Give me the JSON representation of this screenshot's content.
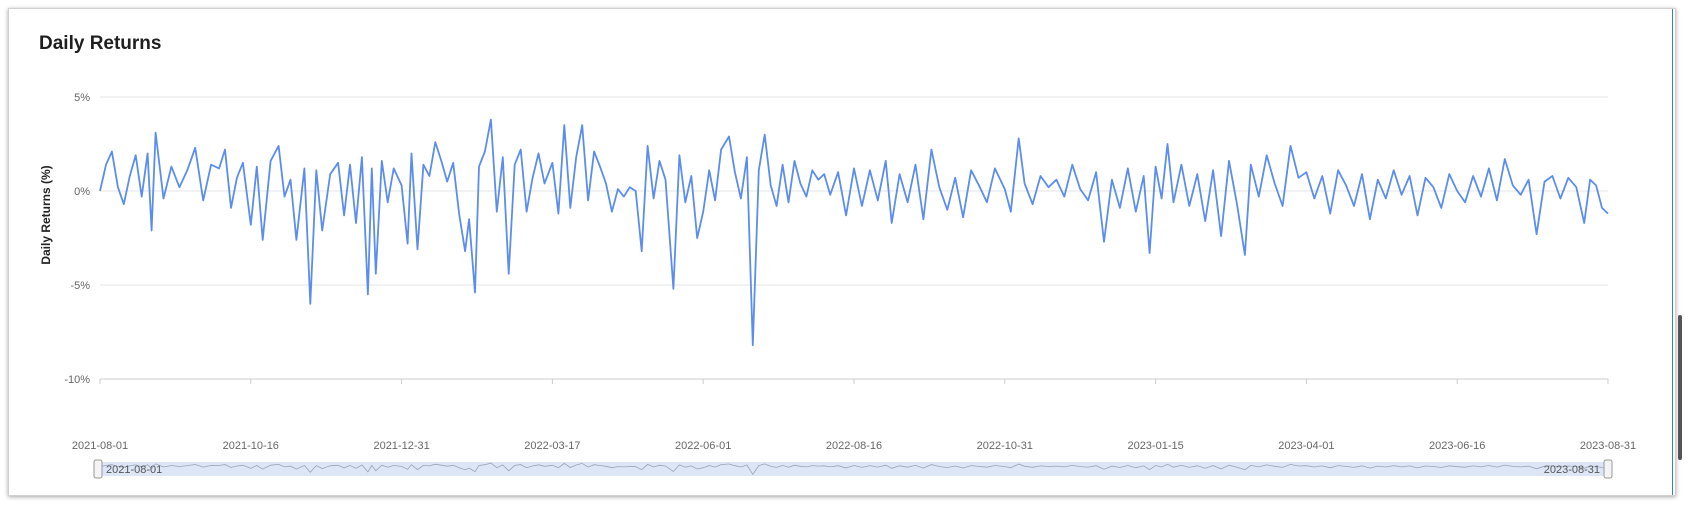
{
  "panel": {
    "title": "Daily Returns"
  },
  "chart_data": {
    "type": "line",
    "title": "Daily Returns",
    "ylabel": "Daily Returns (%)",
    "xlabel": "",
    "ylim": [
      -10,
      5
    ],
    "y_ticks": [
      "5%",
      "0%",
      "-5%",
      "-10%"
    ],
    "y_tick_values": [
      5,
      0,
      -5,
      -10
    ],
    "x_range": [
      "2021-08-01",
      "2023-08-31"
    ],
    "x_tick_labels": [
      "2021-08-01",
      "2021-10-16",
      "2021-12-31",
      "2022-03-17",
      "2022-06-01",
      "2022-08-16",
      "2022-10-31",
      "2023-01-15",
      "2023-04-01",
      "2023-06-16",
      "2023-08-31"
    ],
    "grid": "horizontal",
    "legend": "none",
    "series": [
      {
        "color": "#5b8def",
        "points": [
          [
            "2021-08-01",
            0.0
          ],
          [
            "2021-08-04",
            1.4
          ],
          [
            "2021-08-07",
            2.1
          ],
          [
            "2021-08-10",
            0.2
          ],
          [
            "2021-08-13",
            -0.7
          ],
          [
            "2021-08-16",
            0.8
          ],
          [
            "2021-08-19",
            1.9
          ],
          [
            "2021-08-22",
            -0.3
          ],
          [
            "2021-08-25",
            2.0
          ],
          [
            "2021-08-27",
            -2.1
          ],
          [
            "2021-08-29",
            3.1
          ],
          [
            "2021-09-02",
            -0.4
          ],
          [
            "2021-09-06",
            1.3
          ],
          [
            "2021-09-10",
            0.2
          ],
          [
            "2021-09-14",
            1.1
          ],
          [
            "2021-09-18",
            2.3
          ],
          [
            "2021-09-22",
            -0.5
          ],
          [
            "2021-09-26",
            1.4
          ],
          [
            "2021-09-30",
            1.2
          ],
          [
            "2021-10-03",
            2.2
          ],
          [
            "2021-10-06",
            -0.9
          ],
          [
            "2021-10-09",
            0.7
          ],
          [
            "2021-10-12",
            1.5
          ],
          [
            "2021-10-16",
            -1.8
          ],
          [
            "2021-10-19",
            1.3
          ],
          [
            "2021-10-22",
            -2.6
          ],
          [
            "2021-10-26",
            1.6
          ],
          [
            "2021-10-30",
            2.4
          ],
          [
            "2021-11-02",
            -0.3
          ],
          [
            "2021-11-05",
            0.6
          ],
          [
            "2021-11-08",
            -2.6
          ],
          [
            "2021-11-12",
            1.2
          ],
          [
            "2021-11-15",
            -6.0
          ],
          [
            "2021-11-18",
            1.1
          ],
          [
            "2021-11-21",
            -2.1
          ],
          [
            "2021-11-25",
            0.9
          ],
          [
            "2021-11-29",
            1.5
          ],
          [
            "2021-12-02",
            -1.3
          ],
          [
            "2021-12-05",
            1.4
          ],
          [
            "2021-12-08",
            -1.7
          ],
          [
            "2021-12-11",
            1.8
          ],
          [
            "2021-12-14",
            -5.5
          ],
          [
            "2021-12-16",
            1.2
          ],
          [
            "2021-12-18",
            -4.4
          ],
          [
            "2021-12-21",
            1.6
          ],
          [
            "2021-12-24",
            -0.6
          ],
          [
            "2021-12-27",
            1.2
          ],
          [
            "2021-12-31",
            0.3
          ],
          [
            "2022-01-03",
            -2.8
          ],
          [
            "2022-01-05",
            2.0
          ],
          [
            "2022-01-08",
            -3.1
          ],
          [
            "2022-01-11",
            1.4
          ],
          [
            "2022-01-14",
            0.8
          ],
          [
            "2022-01-17",
            2.6
          ],
          [
            "2022-01-20",
            1.6
          ],
          [
            "2022-01-23",
            0.5
          ],
          [
            "2022-01-26",
            1.5
          ],
          [
            "2022-01-29",
            -1.2
          ],
          [
            "2022-02-01",
            -3.2
          ],
          [
            "2022-02-03",
            -1.5
          ],
          [
            "2022-02-06",
            -5.4
          ],
          [
            "2022-02-08",
            1.3
          ],
          [
            "2022-02-11",
            2.1
          ],
          [
            "2022-02-14",
            3.8
          ],
          [
            "2022-02-17",
            -1.1
          ],
          [
            "2022-02-20",
            1.8
          ],
          [
            "2022-02-23",
            -4.4
          ],
          [
            "2022-02-26",
            1.4
          ],
          [
            "2022-03-01",
            2.2
          ],
          [
            "2022-03-04",
            -1.1
          ],
          [
            "2022-03-07",
            0.7
          ],
          [
            "2022-03-10",
            2.0
          ],
          [
            "2022-03-13",
            0.4
          ],
          [
            "2022-03-17",
            1.5
          ],
          [
            "2022-03-20",
            -1.2
          ],
          [
            "2022-03-23",
            3.5
          ],
          [
            "2022-03-26",
            -0.9
          ],
          [
            "2022-03-29",
            1.8
          ],
          [
            "2022-04-01",
            3.5
          ],
          [
            "2022-04-04",
            -0.5
          ],
          [
            "2022-04-07",
            2.1
          ],
          [
            "2022-04-10",
            1.3
          ],
          [
            "2022-04-13",
            0.4
          ],
          [
            "2022-04-16",
            -1.1
          ],
          [
            "2022-04-19",
            0.1
          ],
          [
            "2022-04-22",
            -0.3
          ],
          [
            "2022-04-25",
            0.2
          ],
          [
            "2022-04-28",
            0.0
          ],
          [
            "2022-05-01",
            -3.2
          ],
          [
            "2022-05-04",
            2.4
          ],
          [
            "2022-05-07",
            -0.4
          ],
          [
            "2022-05-10",
            1.6
          ],
          [
            "2022-05-13",
            0.6
          ],
          [
            "2022-05-17",
            -5.2
          ],
          [
            "2022-05-20",
            1.9
          ],
          [
            "2022-05-23",
            -0.6
          ],
          [
            "2022-05-26",
            0.8
          ],
          [
            "2022-05-29",
            -2.5
          ],
          [
            "2022-06-01",
            -1.1
          ],
          [
            "2022-06-04",
            1.1
          ],
          [
            "2022-06-07",
            -0.5
          ],
          [
            "2022-06-10",
            2.2
          ],
          [
            "2022-06-14",
            2.9
          ],
          [
            "2022-06-17",
            1.0
          ],
          [
            "2022-06-20",
            -0.4
          ],
          [
            "2022-06-23",
            1.8
          ],
          [
            "2022-06-26",
            -8.2
          ],
          [
            "2022-06-29",
            1.1
          ],
          [
            "2022-07-02",
            3.0
          ],
          [
            "2022-07-05",
            0.3
          ],
          [
            "2022-07-08",
            -0.8
          ],
          [
            "2022-07-11",
            1.4
          ],
          [
            "2022-07-14",
            -0.6
          ],
          [
            "2022-07-17",
            1.6
          ],
          [
            "2022-07-20",
            0.4
          ],
          [
            "2022-07-23",
            -0.3
          ],
          [
            "2022-07-26",
            1.1
          ],
          [
            "2022-07-29",
            0.6
          ],
          [
            "2022-08-01",
            0.9
          ],
          [
            "2022-08-04",
            -0.2
          ],
          [
            "2022-08-08",
            1.0
          ],
          [
            "2022-08-12",
            -1.3
          ],
          [
            "2022-08-16",
            1.2
          ],
          [
            "2022-08-20",
            -0.8
          ],
          [
            "2022-08-24",
            1.1
          ],
          [
            "2022-08-28",
            -0.5
          ],
          [
            "2022-09-01",
            1.6
          ],
          [
            "2022-09-04",
            -1.7
          ],
          [
            "2022-09-08",
            0.9
          ],
          [
            "2022-09-12",
            -0.6
          ],
          [
            "2022-09-16",
            1.4
          ],
          [
            "2022-09-20",
            -1.5
          ],
          [
            "2022-09-24",
            2.2
          ],
          [
            "2022-09-28",
            0.2
          ],
          [
            "2022-10-02",
            -1.0
          ],
          [
            "2022-10-06",
            0.7
          ],
          [
            "2022-10-10",
            -1.4
          ],
          [
            "2022-10-14",
            1.1
          ],
          [
            "2022-10-18",
            0.3
          ],
          [
            "2022-10-22",
            -0.6
          ],
          [
            "2022-10-26",
            1.2
          ],
          [
            "2022-10-31",
            0.1
          ],
          [
            "2022-11-03",
            -1.1
          ],
          [
            "2022-11-07",
            2.8
          ],
          [
            "2022-11-10",
            0.4
          ],
          [
            "2022-11-14",
            -0.7
          ],
          [
            "2022-11-18",
            0.8
          ],
          [
            "2022-11-22",
            0.2
          ],
          [
            "2022-11-26",
            0.6
          ],
          [
            "2022-11-30",
            -0.3
          ],
          [
            "2022-12-04",
            1.4
          ],
          [
            "2022-12-08",
            0.1
          ],
          [
            "2022-12-12",
            -0.5
          ],
          [
            "2022-12-16",
            1.0
          ],
          [
            "2022-12-20",
            -2.7
          ],
          [
            "2022-12-24",
            0.6
          ],
          [
            "2022-12-28",
            -0.9
          ],
          [
            "2023-01-01",
            1.2
          ],
          [
            "2023-01-05",
            -1.1
          ],
          [
            "2023-01-09",
            0.8
          ],
          [
            "2023-01-12",
            -3.3
          ],
          [
            "2023-01-15",
            1.3
          ],
          [
            "2023-01-18",
            -0.4
          ],
          [
            "2023-01-21",
            2.5
          ],
          [
            "2023-01-24",
            -0.6
          ],
          [
            "2023-01-28",
            1.4
          ],
          [
            "2023-02-01",
            -0.8
          ],
          [
            "2023-02-05",
            0.9
          ],
          [
            "2023-02-09",
            -1.6
          ],
          [
            "2023-02-13",
            1.1
          ],
          [
            "2023-02-17",
            -2.4
          ],
          [
            "2023-02-21",
            1.6
          ],
          [
            "2023-02-25",
            -0.7
          ],
          [
            "2023-03-01",
            -3.4
          ],
          [
            "2023-03-04",
            1.4
          ],
          [
            "2023-03-08",
            -0.3
          ],
          [
            "2023-03-12",
            1.9
          ],
          [
            "2023-03-16",
            0.4
          ],
          [
            "2023-03-20",
            -0.8
          ],
          [
            "2023-03-24",
            2.4
          ],
          [
            "2023-03-28",
            0.7
          ],
          [
            "2023-04-01",
            1.0
          ],
          [
            "2023-04-05",
            -0.4
          ],
          [
            "2023-04-09",
            0.8
          ],
          [
            "2023-04-13",
            -1.2
          ],
          [
            "2023-04-17",
            1.1
          ],
          [
            "2023-04-21",
            0.3
          ],
          [
            "2023-04-25",
            -0.8
          ],
          [
            "2023-04-29",
            0.9
          ],
          [
            "2023-05-03",
            -1.5
          ],
          [
            "2023-05-07",
            0.6
          ],
          [
            "2023-05-11",
            -0.4
          ],
          [
            "2023-05-15",
            1.1
          ],
          [
            "2023-05-19",
            -0.2
          ],
          [
            "2023-05-23",
            0.8
          ],
          [
            "2023-05-27",
            -1.3
          ],
          [
            "2023-05-31",
            0.7
          ],
          [
            "2023-06-04",
            0.2
          ],
          [
            "2023-06-08",
            -0.9
          ],
          [
            "2023-06-12",
            0.9
          ],
          [
            "2023-06-16",
            0.0
          ],
          [
            "2023-06-20",
            -0.6
          ],
          [
            "2023-06-24",
            0.8
          ],
          [
            "2023-06-28",
            -0.3
          ],
          [
            "2023-07-02",
            1.2
          ],
          [
            "2023-07-06",
            -0.5
          ],
          [
            "2023-07-10",
            1.7
          ],
          [
            "2023-07-14",
            0.3
          ],
          [
            "2023-07-18",
            -0.2
          ],
          [
            "2023-07-22",
            0.6
          ],
          [
            "2023-07-26",
            -2.3
          ],
          [
            "2023-07-30",
            0.5
          ],
          [
            "2023-08-03",
            0.8
          ],
          [
            "2023-08-07",
            -0.4
          ],
          [
            "2023-08-11",
            0.7
          ],
          [
            "2023-08-15",
            0.2
          ],
          [
            "2023-08-19",
            -1.7
          ],
          [
            "2023-08-22",
            0.6
          ],
          [
            "2023-08-25",
            0.3
          ],
          [
            "2023-08-28",
            -0.9
          ],
          [
            "2023-08-31",
            -1.2
          ]
        ]
      }
    ]
  },
  "navigator": {
    "start_label": "2021-08-01",
    "end_label": "2023-08-31"
  },
  "colors": {
    "line": "#5b8def",
    "grid": "#e6e6e6",
    "navigator_fill": "#dde6f7",
    "accent": "#2e86c1"
  }
}
